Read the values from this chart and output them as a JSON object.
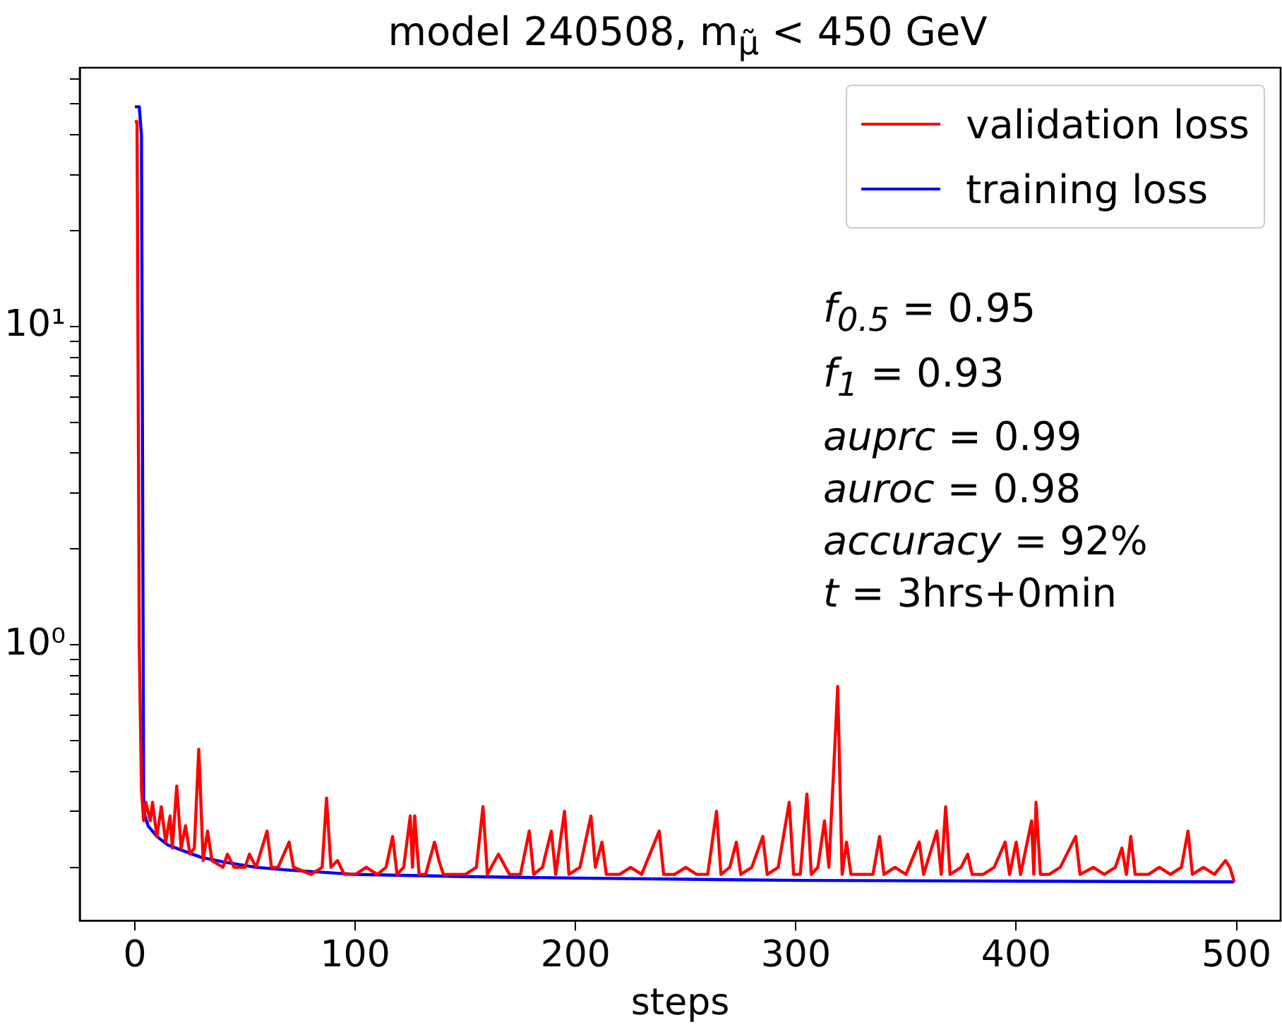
{
  "chart_data": {
    "type": "line",
    "title": "model 240508, m$_{μ̃}$ < 450 GeV",
    "xlabel": "steps",
    "series": [
      {
        "name": "validation loss",
        "color": "#ff0000",
        "x": [
          0,
          1,
          2,
          3,
          4,
          5,
          7,
          8,
          10,
          12,
          14,
          16,
          17,
          19,
          21,
          23,
          25,
          27,
          29,
          31,
          33,
          35,
          40,
          42,
          45,
          50,
          52,
          55,
          60,
          62,
          65,
          70,
          72,
          80,
          85,
          87,
          89,
          92,
          95,
          100,
          105,
          110,
          114,
          117,
          119,
          122,
          125,
          126,
          127,
          129,
          132,
          136,
          138,
          140,
          145,
          150,
          155,
          158,
          160,
          165,
          170,
          175,
          179,
          181,
          185,
          189,
          191,
          195,
          197,
          202,
          207,
          209,
          212,
          214,
          220,
          225,
          230,
          238,
          240,
          245,
          250,
          255,
          260,
          264,
          266,
          270,
          273,
          275,
          280,
          285,
          287,
          292,
          297,
          299,
          302,
          305,
          307,
          310,
          313,
          315,
          319,
          321,
          323,
          325,
          330,
          335,
          338,
          340,
          345,
          350,
          356,
          358,
          364,
          366,
          368,
          370,
          375,
          378,
          380,
          385,
          390,
          395,
          397,
          400,
          402,
          407,
          408,
          409,
          411,
          415,
          420,
          427,
          429,
          435,
          440,
          445,
          448,
          450,
          452,
          454,
          460,
          465,
          470,
          475,
          478,
          480,
          485,
          490,
          495,
          497,
          499
        ],
        "values": [
          44,
          44,
          1.0,
          0.35,
          0.28,
          0.32,
          0.28,
          0.32,
          0.25,
          0.31,
          0.24,
          0.29,
          0.23,
          0.36,
          0.23,
          0.27,
          0.22,
          0.23,
          0.47,
          0.21,
          0.26,
          0.21,
          0.2,
          0.22,
          0.2,
          0.2,
          0.22,
          0.2,
          0.26,
          0.2,
          0.2,
          0.24,
          0.2,
          0.19,
          0.2,
          0.33,
          0.2,
          0.21,
          0.19,
          0.19,
          0.2,
          0.19,
          0.2,
          0.25,
          0.19,
          0.2,
          0.29,
          0.2,
          0.29,
          0.19,
          0.19,
          0.24,
          0.21,
          0.19,
          0.19,
          0.19,
          0.2,
          0.31,
          0.19,
          0.22,
          0.19,
          0.19,
          0.26,
          0.19,
          0.2,
          0.26,
          0.19,
          0.3,
          0.19,
          0.2,
          0.29,
          0.2,
          0.24,
          0.19,
          0.19,
          0.2,
          0.19,
          0.26,
          0.19,
          0.19,
          0.2,
          0.19,
          0.19,
          0.3,
          0.19,
          0.2,
          0.24,
          0.19,
          0.2,
          0.25,
          0.19,
          0.2,
          0.32,
          0.19,
          0.19,
          0.34,
          0.19,
          0.2,
          0.28,
          0.2,
          0.74,
          0.19,
          0.24,
          0.19,
          0.19,
          0.19,
          0.25,
          0.19,
          0.2,
          0.19,
          0.24,
          0.19,
          0.26,
          0.19,
          0.31,
          0.19,
          0.2,
          0.22,
          0.19,
          0.19,
          0.2,
          0.24,
          0.19,
          0.24,
          0.19,
          0.28,
          0.19,
          0.32,
          0.19,
          0.19,
          0.2,
          0.25,
          0.19,
          0.2,
          0.19,
          0.2,
          0.23,
          0.19,
          0.25,
          0.19,
          0.19,
          0.2,
          0.19,
          0.2,
          0.26,
          0.19,
          0.2,
          0.19,
          0.21,
          0.2,
          0.18
        ]
      },
      {
        "name": "training loss",
        "color": "#0000ff",
        "x": [
          0,
          2,
          3,
          4,
          6,
          10,
          15,
          20,
          30,
          40,
          55,
          70,
          100,
          150,
          200,
          300,
          400,
          499
        ],
        "values": [
          49,
          49,
          40,
          0.3,
          0.27,
          0.25,
          0.235,
          0.228,
          0.215,
          0.208,
          0.2,
          0.196,
          0.19,
          0.187,
          0.185,
          0.182,
          0.181,
          0.18
        ]
      }
    ],
    "xlim": [
      -25,
      520
    ],
    "xticks": [
      0,
      100,
      200,
      300,
      400,
      500
    ],
    "ylim": [
      0.136,
      65
    ],
    "yticks": [
      {
        "value": 0.2,
        "label": null
      },
      {
        "value": 0.3,
        "label": null
      },
      {
        "value": 0.4,
        "label": null
      },
      {
        "value": 0.5,
        "label": null
      },
      {
        "value": 0.6,
        "label": null
      },
      {
        "value": 0.7,
        "label": null
      },
      {
        "value": 0.8,
        "label": null
      },
      {
        "value": 0.9,
        "label": null
      },
      {
        "value": 1,
        "label": "10⁰"
      },
      {
        "value": 2,
        "label": null
      },
      {
        "value": 3,
        "label": null
      },
      {
        "value": 4,
        "label": null
      },
      {
        "value": 5,
        "label": null
      },
      {
        "value": 6,
        "label": null
      },
      {
        "value": 7,
        "label": null
      },
      {
        "value": 8,
        "label": null
      },
      {
        "value": 9,
        "label": null
      },
      {
        "value": 10,
        "label": "10¹"
      },
      {
        "value": 20,
        "label": null
      },
      {
        "value": 30,
        "label": null
      },
      {
        "value": 40,
        "label": null
      },
      {
        "value": 50,
        "label": null
      },
      {
        "value": 60,
        "label": null
      }
    ],
    "log": true,
    "legend": "top right",
    "marker": "none",
    "line_style": "solid",
    "annotations": [
      "f$_{0.5}$ = 0.95",
      "f$_{1}$ = 0.93",
      "auprc = 0.99",
      "auroc = 0.98",
      "accuracy = 92%",
      "t = 3hrs+0min"
    ]
  }
}
